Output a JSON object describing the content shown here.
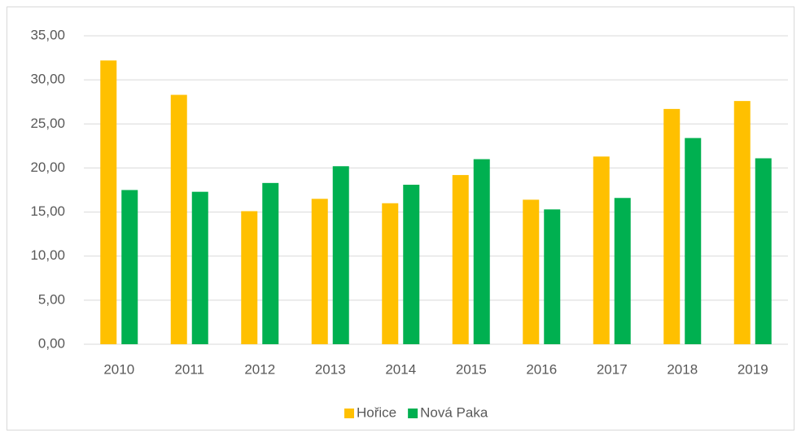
{
  "chart_data": {
    "type": "bar",
    "categories": [
      "2010",
      "2011",
      "2012",
      "2013",
      "2014",
      "2015",
      "2016",
      "2017",
      "2018",
      "2019"
    ],
    "series": [
      {
        "name": "Hořice",
        "color": "#ffc000",
        "values": [
          32.2,
          28.3,
          15.1,
          16.5,
          16.0,
          19.2,
          16.4,
          21.3,
          26.7,
          27.6
        ]
      },
      {
        "name": "Nová Paka",
        "color": "#00b050",
        "values": [
          17.5,
          17.3,
          18.3,
          20.2,
          18.1,
          21.0,
          15.3,
          16.6,
          23.4,
          21.1
        ]
      }
    ],
    "ylim": [
      0,
      35
    ],
    "yticks": [
      {
        "value": 0,
        "label": "0,00"
      },
      {
        "value": 5,
        "label": "5,00"
      },
      {
        "value": 10,
        "label": "10,00"
      },
      {
        "value": 15,
        "label": "15,00"
      },
      {
        "value": 20,
        "label": "20,00"
      },
      {
        "value": 25,
        "label": "25,00"
      },
      {
        "value": 30,
        "label": "30,00"
      },
      {
        "value": 35,
        "label": "35,00"
      }
    ],
    "grid": true,
    "legend": "bottom"
  }
}
